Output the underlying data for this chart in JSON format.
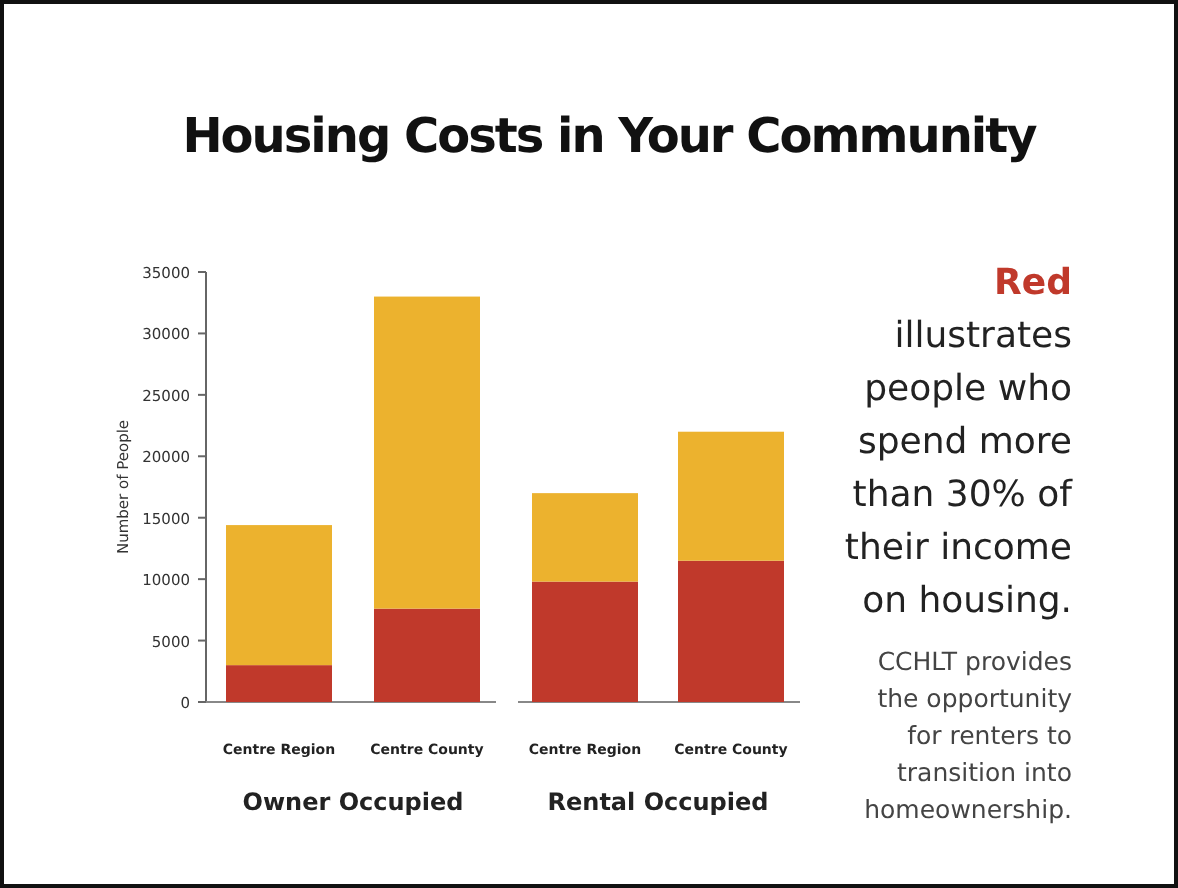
{
  "chart_data": {
    "type": "bar",
    "title": "Housing Costs in Your Community",
    "ylabel": "Number of People",
    "categories": [
      "Centre Region",
      "Centre County",
      "Centre Region",
      "Centre County"
    ],
    "stacked": true,
    "series": [
      {
        "color": "#c0392b",
        "values": [
          3000,
          7600,
          9800,
          11500
        ]
      },
      {
        "color": "#ecb22e",
        "values": [
          11400,
          25400,
          7200,
          10500
        ]
      }
    ],
    "ylim": [
      0,
      35000
    ],
    "yticks": [
      0,
      5000,
      10000,
      15000,
      20000,
      25000,
      30000,
      35000
    ],
    "annotations": [
      "Owner Occupied",
      "Rental Occupied",
      "Red illustrates people who spend more than 30% of their income on housing.",
      "CCHLT provides the opportunity for renters to transition into homeownership."
    ]
  }
}
